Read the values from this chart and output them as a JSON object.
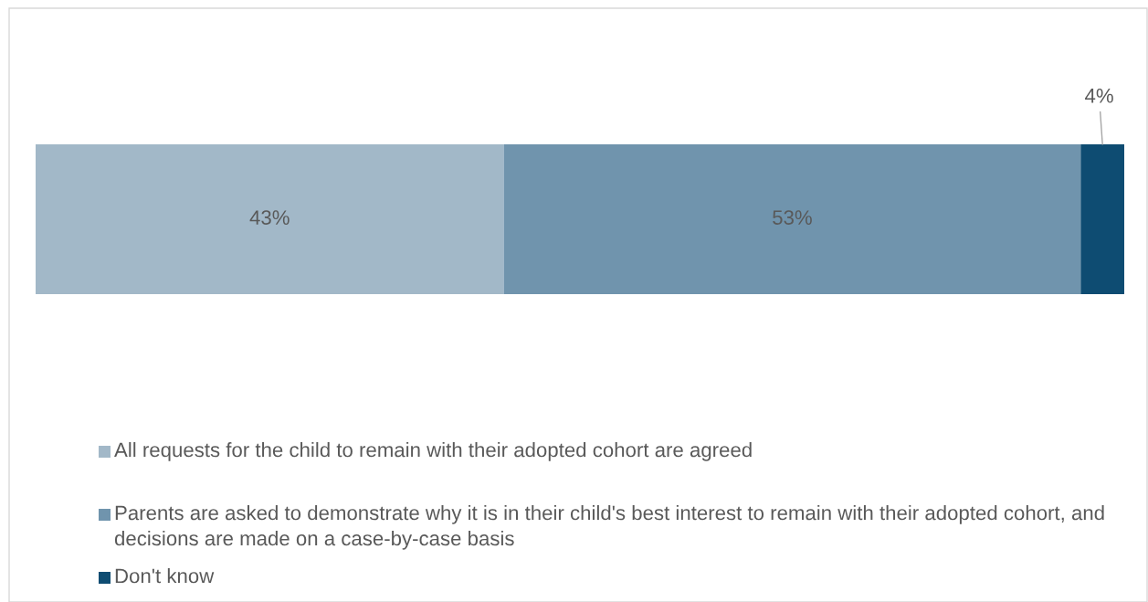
{
  "chart_data": {
    "type": "bar",
    "orientation": "horizontal",
    "stacked": true,
    "categories": [
      null
    ],
    "series": [
      {
        "name": "All requests for the child to remain with their adopted cohort are agreed",
        "color": "#a2b8c8",
        "values": [
          43
        ],
        "value_labels": [
          "43%"
        ]
      },
      {
        "name": "Parents are asked to demonstrate why it is in their child's best interest to remain with their adopted cohort, and decisions are made on a case-by-case basis",
        "color": "#7094ad",
        "values": [
          53
        ],
        "value_labels": [
          "53%"
        ]
      },
      {
        "name": "Don't know",
        "color": "#0e4c72",
        "values": [
          4
        ],
        "value_labels": [
          "4%"
        ]
      }
    ],
    "xlim": [
      0,
      100
    ],
    "tick_labels": false,
    "grid": false,
    "legend": "bottom"
  }
}
